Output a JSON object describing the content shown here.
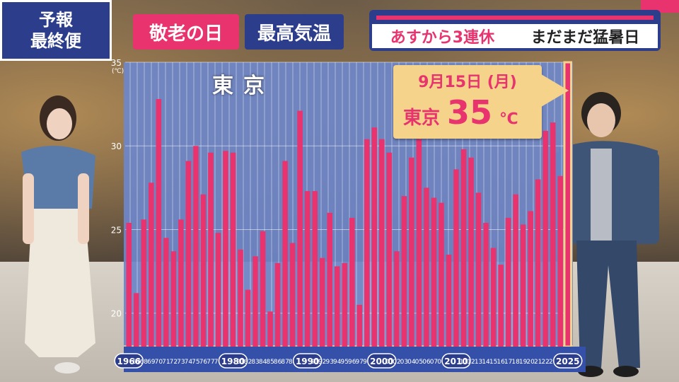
{
  "tags": {
    "forecast_line1": "予報",
    "forecast_line2": "最終便",
    "keirou": "敬老の日",
    "kion": "最高気温"
  },
  "headline": {
    "part1": "あすから3連休",
    "part2": "まだまだ猛暑日"
  },
  "city": "東京",
  "unit": "(℃)",
  "callout": {
    "date": "9月15日 (月)",
    "city": "東京",
    "temp": "35",
    "deg": "℃"
  },
  "colors": {
    "bar": "#e8336e",
    "accent": "#2c3d8c",
    "highlight": "#f5d38a"
  },
  "chart_data": {
    "type": "bar",
    "title": "東京",
    "ylabel": "(℃)",
    "ylim": [
      18,
      35
    ],
    "yticks": [
      20,
      25,
      30,
      35
    ],
    "categories": [
      "1966",
      "67",
      "68",
      "69",
      "70",
      "71",
      "72",
      "73",
      "74",
      "75",
      "76",
      "77",
      "78",
      "79",
      "1980",
      "81",
      "82",
      "83",
      "84",
      "85",
      "86",
      "87",
      "88",
      "89",
      "1990",
      "91",
      "92",
      "93",
      "94",
      "95",
      "96",
      "97",
      "98",
      "99",
      "2000",
      "01",
      "02",
      "03",
      "04",
      "05",
      "06",
      "07",
      "08",
      "09",
      "2010",
      "11",
      "12",
      "13",
      "14",
      "15",
      "16",
      "17",
      "18",
      "19",
      "20",
      "21",
      "22",
      "23",
      "24",
      "2025"
    ],
    "decade_labels": [
      "1966",
      "1980",
      "1990",
      "2000",
      "2010",
      "2025"
    ],
    "values": [
      25.4,
      21.2,
      25.6,
      27.8,
      32.8,
      24.5,
      23.7,
      25.6,
      29.1,
      30.0,
      27.1,
      29.6,
      24.8,
      29.7,
      29.6,
      23.8,
      21.4,
      23.4,
      24.9,
      20.1,
      23.0,
      29.1,
      24.2,
      32.1,
      27.3,
      27.3,
      23.3,
      26.0,
      22.8,
      23.0,
      25.7,
      20.5,
      30.4,
      31.1,
      30.4,
      29.6,
      23.7,
      27.0,
      29.3,
      30.4,
      27.5,
      26.9,
      26.6,
      23.5,
      28.6,
      29.8,
      29.3,
      27.2,
      25.4,
      23.9,
      22.9,
      25.7,
      27.1,
      25.3,
      26.1,
      28.0,
      30.9,
      31.4,
      28.2,
      35.0
    ],
    "highlight_index": 59
  }
}
